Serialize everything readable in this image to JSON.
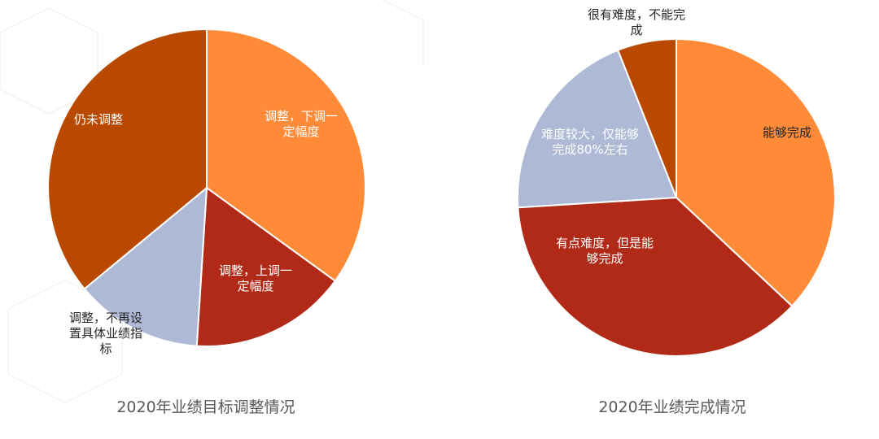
{
  "chart_data": [
    {
      "type": "pie",
      "title": "2020年业绩目标调整情况",
      "slices": [
        {
          "label": "调整，下调一定幅度",
          "value": 35,
          "color": "#FF8A37"
        },
        {
          "label": "调整，上调一定幅度",
          "value": 16,
          "color": "#B12A17"
        },
        {
          "label": "调整，不再设置具体业绩指标",
          "value": 13,
          "color": "#AEB9D6"
        },
        {
          "label": "仍未调整",
          "value": 36,
          "color": "#BA4900"
        }
      ],
      "start_angle_deg": 0,
      "direction": "clockwise"
    },
    {
      "type": "pie",
      "title": "2020年业绩完成情况",
      "slices": [
        {
          "label": "能够完成",
          "value": 37,
          "color": "#FF8A37"
        },
        {
          "label": "有点难度，但是能够完成",
          "value": 37,
          "color": "#B12A17"
        },
        {
          "label": "难度较大，仅能够完成80%左右",
          "value": 20,
          "color": "#AEB9D6"
        },
        {
          "label": "很有难度，不能完成",
          "value": 6,
          "color": "#BA4900"
        }
      ],
      "start_angle_deg": 0,
      "direction": "clockwise"
    }
  ]
}
